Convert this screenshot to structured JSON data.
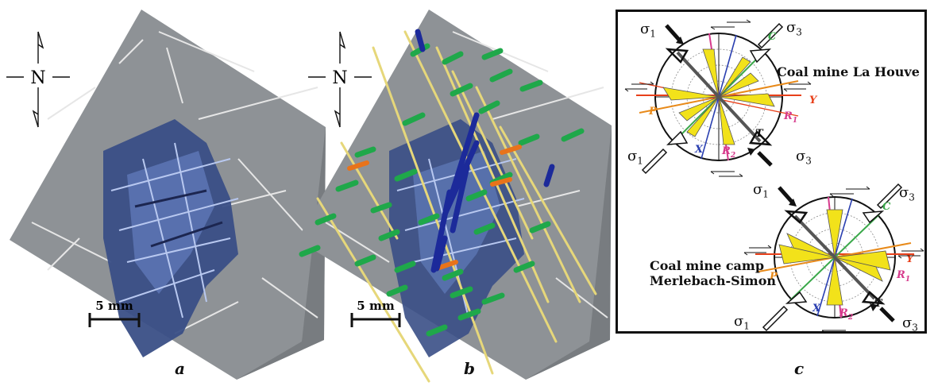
{
  "panels": {
    "a": {
      "label": "a",
      "north": "N",
      "scale": "5 mm"
    },
    "b": {
      "label": "b",
      "north": "N",
      "scale": "5 mm"
    },
    "c": {
      "label": "c",
      "site1": {
        "name": "Coal mine La Houve",
        "sigma1_top": "σ",
        "sigma1_top_sub": "1",
        "sigma3_top": "σ",
        "sigma3_top_sub": "3",
        "sigma1_bottom": "σ",
        "sigma1_bottom_sub": "1",
        "sigma3_bottom": "σ",
        "sigma3_bottom_sub": "3"
      },
      "site2": {
        "name_line1": "Coal mine camp",
        "name_line2": "Merlebach-Simon",
        "sigma1_top": "σ",
        "sigma1_top_sub": "1",
        "sigma3_top": "σ",
        "sigma3_top_sub": "3",
        "sigma1_bottom": "σ",
        "sigma1_bottom_sub": "1",
        "sigma3_bottom": "σ",
        "sigma3_bottom_sub": "3"
      },
      "rose_labels": {
        "C": "C",
        "Y": "Y",
        "R1": "R",
        "R1_sub": "1",
        "R2": "R",
        "R2_sub": "2",
        "P": "P",
        "X": "X",
        "T": "T"
      }
    }
  },
  "colors": {
    "sample_gray": "#8e9296",
    "fracture_blue": "#3a4f86",
    "cleat_green": "#1fa84a",
    "cleat_orange": "#e8731a",
    "cleat_darkblue": "#1c2a9a",
    "needle_yellow": "#e6d77a",
    "rose_yellow": "#f2e21a",
    "line_red": "#e8401a",
    "line_magenta": "#d63a8c",
    "line_blue": "#2a3fb0",
    "line_green": "#3aa84a",
    "line_orange": "#e88a1a"
  }
}
